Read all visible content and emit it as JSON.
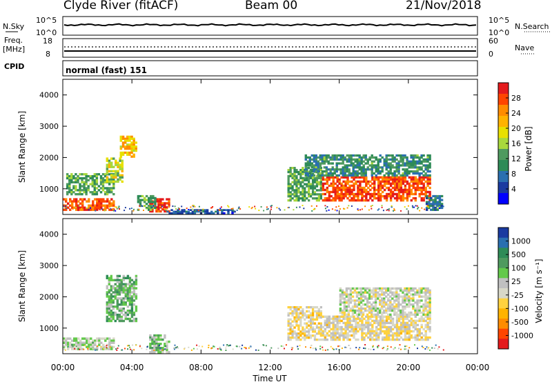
{
  "header": {
    "station": "Clyde River (fitACF)",
    "beam": "Beam 00",
    "date": "21/Nov/2018"
  },
  "noise_panel": {
    "left_label": "N.Sky",
    "left_ticks": [
      "10^5",
      "10^0"
    ],
    "right_label": "N.Search",
    "right_ticks": [
      "10^5",
      "10^0"
    ]
  },
  "freq_panel": {
    "left_label_1": "Freq.",
    "left_label_2": "[MHz]",
    "left_ticks": [
      "18",
      "8"
    ],
    "right_label": "Nave",
    "right_ticks": [
      "60",
      "0"
    ]
  },
  "cpid_panel": {
    "label": "CPID",
    "text": "normal (fast) 151"
  },
  "power_panel": {
    "ylabel": "Slant Range [km]",
    "yticks": [
      "4000",
      "3000",
      "2000",
      "1000"
    ],
    "colorbar_label": "Power [dB]",
    "colorbar_ticks": [
      "28",
      "24",
      "20",
      "16",
      "12",
      "8",
      "4"
    ],
    "colors": [
      "#e41a1c",
      "#ff4500",
      "#ff8c00",
      "#ffb300",
      "#e8e000",
      "#a8d83c",
      "#4f9a5f",
      "#2e8b57",
      "#2a6fb0",
      "#1a3aa0",
      "#0000ff"
    ]
  },
  "velocity_panel": {
    "ylabel": "Slant Range [km]",
    "yticks": [
      "4000",
      "3000",
      "2000",
      "1000"
    ],
    "colorbar_label": "Velocity  [m s⁻¹]",
    "colorbar_ticks": [
      "1000",
      "500",
      "100",
      "25",
      "-25",
      "-100",
      "-500",
      "-1000"
    ],
    "colors": [
      "#1a3aa0",
      "#2a6fb0",
      "#2e8b57",
      "#4f9a5f",
      "#63c94b",
      "#c0c0c0",
      "#d8d8c8",
      "#ffd23f",
      "#ffb300",
      "#ff8c00",
      "#ff4500",
      "#e41a1c"
    ]
  },
  "x_axis": {
    "xlabel": "Time UT",
    "ticks": [
      "00:00",
      "04:00",
      "08:00",
      "12:00",
      "16:00",
      "20:00",
      "00:00"
    ]
  },
  "chart_data": {
    "type": "heatmap",
    "title": "Clyde River (fitACF)  Beam 00  21/Nov/2018",
    "xlabel": "Time UT",
    "ylabel": "Slant Range [km]",
    "xlim_hours": [
      0,
      24
    ],
    "ylim_km": [
      180,
      4500
    ],
    "power_range_db": [
      0,
      30
    ],
    "velocity_range": [
      -1000,
      1000
    ],
    "series": [
      {
        "name": "Power [dB]",
        "regions": [
          {
            "t0": 0.0,
            "t1": 3.0,
            "r0": 300,
            "r1": 700,
            "level": 26
          },
          {
            "t0": 0.2,
            "t1": 3.0,
            "r0": 800,
            "r1": 1500,
            "level": 12
          },
          {
            "t0": 2.5,
            "t1": 3.5,
            "r0": 1200,
            "r1": 2000,
            "level": 16
          },
          {
            "t0": 3.3,
            "t1": 4.3,
            "r0": 2000,
            "r1": 2700,
            "level": 20
          },
          {
            "t0": 5.0,
            "t1": 6.2,
            "r0": 250,
            "r1": 700,
            "level": 28
          },
          {
            "t0": 4.3,
            "t1": 5.4,
            "r0": 300,
            "r1": 800,
            "level": 12
          },
          {
            "t0": 6.0,
            "t1": 10.0,
            "r0": 200,
            "r1": 350,
            "level": 6
          },
          {
            "t0": 13.0,
            "t1": 15.0,
            "r0": 600,
            "r1": 1700,
            "level": 12
          },
          {
            "t0": 15.0,
            "t1": 21.3,
            "r0": 600,
            "r1": 1400,
            "level": 26
          },
          {
            "t0": 14.0,
            "t1": 21.3,
            "r0": 1400,
            "r1": 2100,
            "level": 10
          },
          {
            "t0": 21.0,
            "t1": 22.0,
            "r0": 300,
            "r1": 800,
            "level": 8
          }
        ]
      },
      {
        "name": "Velocity [m s-1]",
        "regions": [
          {
            "t0": 0.0,
            "t1": 3.0,
            "r0": 300,
            "r1": 700,
            "level": 100
          },
          {
            "t0": 2.5,
            "t1": 4.3,
            "r0": 1200,
            "r1": 2700,
            "level": 300
          },
          {
            "t0": 5.0,
            "t1": 6.2,
            "r0": 200,
            "r1": 800,
            "level": 200
          },
          {
            "t0": 13.0,
            "t1": 15.0,
            "r0": 600,
            "r1": 1700,
            "level": -150
          },
          {
            "t0": 15.0,
            "t1": 21.3,
            "r0": 600,
            "r1": 1400,
            "level": -100
          },
          {
            "t0": 16.0,
            "t1": 21.3,
            "r0": 1400,
            "r1": 2300,
            "level": 0
          }
        ]
      }
    ]
  }
}
